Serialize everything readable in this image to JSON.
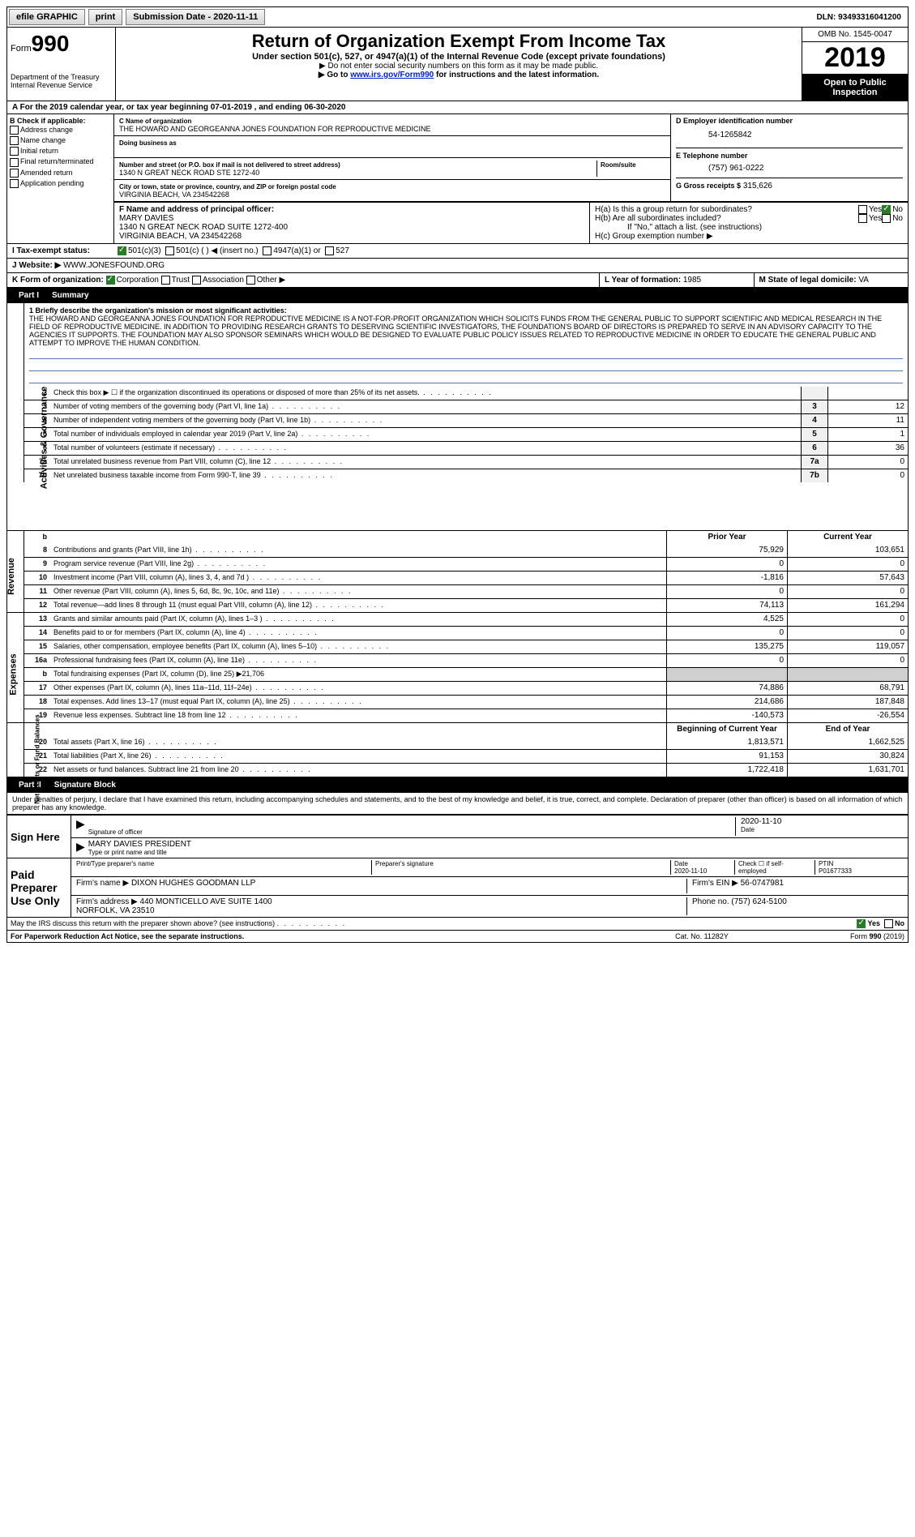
{
  "topbar": {
    "efile": "efile GRAPHIC",
    "print": "print",
    "sub_lbl": "Submission Date - 2020-11-11",
    "dln": "DLN: 93493316041200"
  },
  "header": {
    "form_word": "Form",
    "form_num": "990",
    "dept": "Department of the Treasury\nInternal Revenue Service",
    "title": "Return of Organization Exempt From Income Tax",
    "sub": "Under section 501(c), 527, or 4947(a)(1) of the Internal Revenue Code (except private foundations)",
    "note1": "▶ Do not enter social security numbers on this form as it may be made public.",
    "note2_pre": "▶ Go to ",
    "note2_link": "www.irs.gov/Form990",
    "note2_post": " for instructions and the latest information.",
    "omb": "OMB No. 1545-0047",
    "year": "2019",
    "open": "Open to Public Inspection"
  },
  "line_a": "A For the 2019 calendar year, or tax year beginning 07-01-2019   , and ending 06-30-2020",
  "col_b": {
    "hdr": "B Check if applicable:",
    "items": [
      "Address change",
      "Name change",
      "Initial return",
      "Final return/terminated",
      "Amended return",
      "Application pending"
    ]
  },
  "col_c": {
    "name_lbl": "C Name of organization",
    "name": "THE HOWARD AND GEORGEANNA JONES FOUNDATION FOR REPRODUCTIVE MEDICINE",
    "dba_lbl": "Doing business as",
    "dba": "",
    "addr_lbl": "Number and street (or P.O. box if mail is not delivered to street address)",
    "room_lbl": "Room/suite",
    "addr": "1340 N GREAT NECK ROAD STE 1272-40",
    "city_lbl": "City or town, state or province, country, and ZIP or foreign postal code",
    "city": "VIRGINIA BEACH, VA  234542268"
  },
  "col_d": {
    "lbl": "D Employer identification number",
    "val": "54-1265842"
  },
  "col_e": {
    "lbl": "E Telephone number",
    "val": "(757) 961-0222"
  },
  "col_g": {
    "lbl": "G Gross receipts $",
    "val": "315,626"
  },
  "col_f": {
    "lbl": "F  Name and address of principal officer:",
    "name": "MARY DAVIES",
    "addr1": "1340 N GREAT NECK ROAD SUITE 1272-400",
    "addr2": "VIRGINIA BEACH, VA  234542268"
  },
  "col_h": {
    "ha": "H(a)  Is this a group return for subordinates?",
    "hb": "H(b)  Are all subordinates included?",
    "hb_note": "If \"No,\" attach a list. (see instructions)",
    "hc": "H(c)  Group exemption number ▶",
    "yes": "Yes",
    "no": "No"
  },
  "row_i": {
    "lbl": "I   Tax-exempt status:",
    "o1": "501(c)(3)",
    "o2": "501(c) (   ) ◀ (insert no.)",
    "o3": "4947(a)(1) or",
    "o4": "527"
  },
  "row_j": {
    "lbl": "J   Website: ▶",
    "val": "WWW.JONESFOUND.ORG"
  },
  "row_k": {
    "lbl": "K Form of organization:",
    "o1": "Corporation",
    "o2": "Trust",
    "o3": "Association",
    "o4": "Other ▶"
  },
  "row_lm": {
    "l_lbl": "L Year of formation:",
    "l_val": "1985",
    "m_lbl": "M State of legal domicile:",
    "m_val": "VA"
  },
  "part1": {
    "lbl": "Part I",
    "title": "Summary"
  },
  "mission": {
    "lbl": "1  Briefly describe the organization's mission or most significant activities:",
    "text": "THE HOWARD AND GEORGEANNA JONES FOUNDATION FOR REPRODUCTIVE MEDICINE IS A NOT-FOR-PROFIT ORGANIZATION WHICH SOLICITS FUNDS FROM THE GENERAL PUBLIC TO SUPPORT SCIENTIFIC AND MEDICAL RESEARCH IN THE FIELD OF REPRODUCTIVE MEDICINE. IN ADDITION TO PROVIDING RESEARCH GRANTS TO DESERVING SCIENTIFIC INVESTIGATORS, THE FOUNDATION'S BOARD OF DIRECTORS IS PREPARED TO SERVE IN AN ADVISORY CAPACITY TO THE AGENCIES IT SUPPORTS. THE FOUNDATION MAY ALSO SPONSOR SEMINARS WHICH WOULD BE DESIGNED TO EVALUATE PUBLIC POLICY ISSUES RELATED TO REPRODUCTIVE MEDICINE IN ORDER TO EDUCATE THE GENERAL PUBLIC AND ATTEMPT TO IMPROVE THE HUMAN CONDITION."
  },
  "gov_lines": [
    {
      "n": "2",
      "t": "Check this box ▶ ☐  if the organization discontinued its operations or disposed of more than 25% of its net assets.",
      "box": "",
      "v": ""
    },
    {
      "n": "3",
      "t": "Number of voting members of the governing body (Part VI, line 1a)",
      "box": "3",
      "v": "12"
    },
    {
      "n": "4",
      "t": "Number of independent voting members of the governing body (Part VI, line 1b)",
      "box": "4",
      "v": "11"
    },
    {
      "n": "5",
      "t": "Total number of individuals employed in calendar year 2019 (Part V, line 2a)",
      "box": "5",
      "v": "1"
    },
    {
      "n": "6",
      "t": "Total number of volunteers (estimate if necessary)",
      "box": "6",
      "v": "36"
    },
    {
      "n": "7a",
      "t": "Total unrelated business revenue from Part VIII, column (C), line 12",
      "box": "7a",
      "v": "0"
    },
    {
      "n": "7b",
      "t": "Net unrelated business taxable income from Form 990-T, line 39",
      "box": "7b",
      "v": "0"
    }
  ],
  "two_col_hdr": {
    "b": "b",
    "prior": "Prior Year",
    "curr": "Current Year"
  },
  "rev_lines": [
    {
      "n": "8",
      "t": "Contributions and grants (Part VIII, line 1h)",
      "p": "75,929",
      "c": "103,651"
    },
    {
      "n": "9",
      "t": "Program service revenue (Part VIII, line 2g)",
      "p": "0",
      "c": "0"
    },
    {
      "n": "10",
      "t": "Investment income (Part VIII, column (A), lines 3, 4, and 7d )",
      "p": "-1,816",
      "c": "57,643"
    },
    {
      "n": "11",
      "t": "Other revenue (Part VIII, column (A), lines 5, 6d, 8c, 9c, 10c, and 11e)",
      "p": "0",
      "c": "0"
    },
    {
      "n": "12",
      "t": "Total revenue—add lines 8 through 11 (must equal Part VIII, column (A), line 12)",
      "p": "74,113",
      "c": "161,294"
    }
  ],
  "exp_lines": [
    {
      "n": "13",
      "t": "Grants and similar amounts paid (Part IX, column (A), lines 1–3 )",
      "p": "4,525",
      "c": "0"
    },
    {
      "n": "14",
      "t": "Benefits paid to or for members (Part IX, column (A), line 4)",
      "p": "0",
      "c": "0"
    },
    {
      "n": "15",
      "t": "Salaries, other compensation, employee benefits (Part IX, column (A), lines 5–10)",
      "p": "135,275",
      "c": "119,057"
    },
    {
      "n": "16a",
      "t": "Professional fundraising fees (Part IX, column (A), line 11e)",
      "p": "0",
      "c": "0"
    },
    {
      "n": "b",
      "t": "Total fundraising expenses (Part IX, column (D), line 25) ▶21,706",
      "p": "",
      "c": "",
      "grey": true
    },
    {
      "n": "17",
      "t": "Other expenses (Part IX, column (A), lines 11a–11d, 11f–24e)",
      "p": "74,886",
      "c": "68,791"
    },
    {
      "n": "18",
      "t": "Total expenses. Add lines 13–17 (must equal Part IX, column (A), line 25)",
      "p": "214,686",
      "c": "187,848"
    },
    {
      "n": "19",
      "t": "Revenue less expenses. Subtract line 18 from line 12",
      "p": "-140,573",
      "c": "-26,554"
    }
  ],
  "net_hdr": {
    "beg": "Beginning of Current Year",
    "end": "End of Year"
  },
  "net_lines": [
    {
      "n": "20",
      "t": "Total assets (Part X, line 16)",
      "p": "1,813,571",
      "c": "1,662,525"
    },
    {
      "n": "21",
      "t": "Total liabilities (Part X, line 26)",
      "p": "91,153",
      "c": "30,824"
    },
    {
      "n": "22",
      "t": "Net assets or fund balances. Subtract line 21 from line 20",
      "p": "1,722,418",
      "c": "1,631,701"
    }
  ],
  "part2": {
    "lbl": "Part II",
    "title": "Signature Block"
  },
  "sig": {
    "decl": "Under penalties of perjury, I declare that I have examined this return, including accompanying schedules and statements, and to the best of my knowledge and belief, it is true, correct, and complete. Declaration of preparer (other than officer) is based on all information of which preparer has any knowledge.",
    "sign_here": "Sign Here",
    "sig_officer": "Signature of officer",
    "date": "2020-11-10",
    "officer_name": "MARY DAVIES  PRESIDENT",
    "type_name": "Type or print name and title",
    "paid": "Paid Preparer Use Only",
    "prep_name_lbl": "Print/Type preparer's name",
    "prep_sig_lbl": "Preparer's signature",
    "date_lbl": "Date",
    "date2": "2020-11-10",
    "check_lbl": "Check ☐ if self-employed",
    "ptin_lbl": "PTIN",
    "ptin": "P01677333",
    "firm_name_lbl": "Firm's name   ▶",
    "firm_name": "DIXON HUGHES GOODMAN LLP",
    "firm_ein_lbl": "Firm's EIN ▶",
    "firm_ein": "56-0747981",
    "firm_addr_lbl": "Firm's address ▶",
    "firm_addr": "440 MONTICELLO AVE SUITE 1400\nNORFOLK, VA  23510",
    "phone_lbl": "Phone no.",
    "phone": "(757) 624-5100"
  },
  "footer": {
    "discuss": "May the IRS discuss this return with the preparer shown above? (see instructions)",
    "yes": "Yes",
    "no": "No",
    "pra": "For Paperwork Reduction Act Notice, see the separate instructions.",
    "cat": "Cat. No. 11282Y",
    "form": "Form 990 (2019)"
  },
  "tabs": {
    "gov": "Activities & Governance",
    "rev": "Revenue",
    "exp": "Expenses",
    "net": "Net Assets or Fund Balances"
  }
}
